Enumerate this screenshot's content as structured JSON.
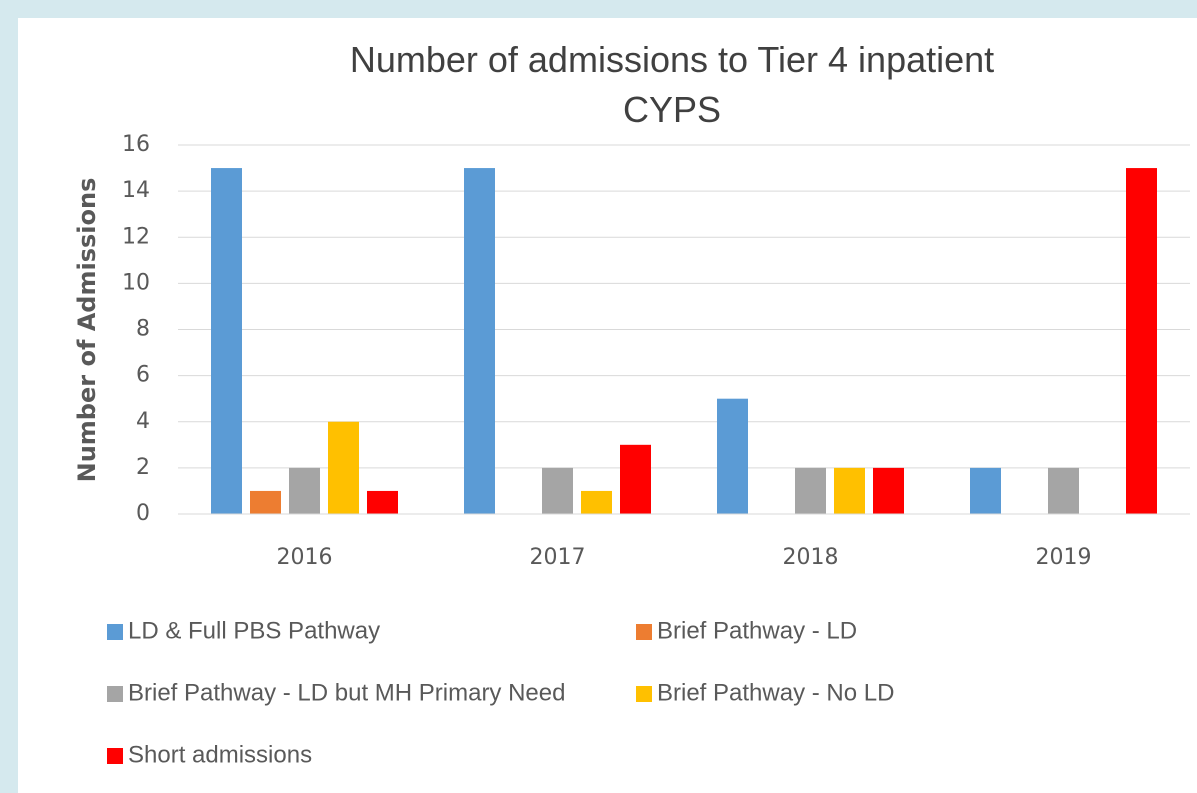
{
  "chart_data": {
    "type": "bar",
    "title": "Number of admissions to Tier 4 inpatient CYPS",
    "y_label": "Number of Admissions",
    "categories": [
      "2016",
      "2017",
      "2018",
      "2019"
    ],
    "series": [
      {
        "name": "LD & Full PBS Pathway",
        "color": "#5b9bd5",
        "values": [
          15,
          15,
          5,
          2
        ]
      },
      {
        "name": "Brief Pathway - LD",
        "color": "#ed7d31",
        "values": [
          1,
          0,
          0,
          0
        ]
      },
      {
        "name": "Brief Pathway - LD but MH Primary Need",
        "color": "#a5a5a5",
        "values": [
          2,
          2,
          2,
          2
        ]
      },
      {
        "name": "Brief Pathway - No LD",
        "color": "#ffc000",
        "values": [
          4,
          1,
          2,
          0
        ]
      },
      {
        "name": "Short admissions",
        "color": "#ff0000",
        "values": [
          1,
          3,
          2,
          15
        ]
      }
    ],
    "ylim": [
      0,
      16
    ],
    "yticks": [
      0,
      2,
      4,
      6,
      8,
      10,
      12,
      14,
      16
    ],
    "grid": true,
    "legend": "bottom"
  }
}
